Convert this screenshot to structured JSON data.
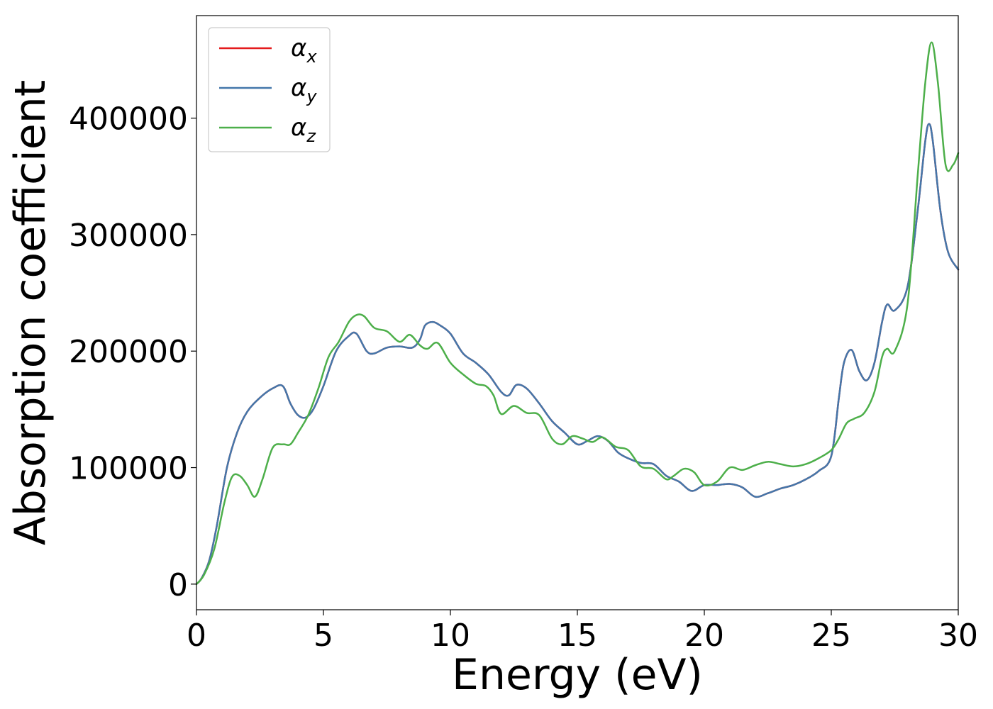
{
  "chart_data": {
    "type": "line",
    "xlabel": "Energy (eV)",
    "ylabel": "Absorption coefficient",
    "xlim": [
      0,
      30
    ],
    "ylim": [
      -22000,
      488000
    ],
    "xticks": [
      0,
      5,
      10,
      15,
      20,
      25,
      30
    ],
    "xtick_labels": [
      "0",
      "5",
      "10",
      "15",
      "20",
      "25",
      "30"
    ],
    "yticks": [
      0,
      100000,
      200000,
      300000,
      400000
    ],
    "ytick_labels": [
      "0",
      "100000",
      "200000",
      "300000",
      "400000"
    ],
    "grid": false,
    "legend_position": "top-left",
    "series": [
      {
        "name": "α",
        "subscript": "x",
        "color": "#e41a1c",
        "x": [
          0,
          0.2,
          0.5,
          0.8,
          1.2,
          1.6,
          2.0,
          2.5,
          3.0,
          3.4,
          3.7,
          4.0,
          4.3,
          4.6,
          5.0,
          5.5,
          6.0,
          6.3,
          6.7,
          7.0,
          7.5,
          8.0,
          8.5,
          8.8,
          9.0,
          9.3,
          9.6,
          10.0,
          10.5,
          11.0,
          11.5,
          12.0,
          12.3,
          12.6,
          13.0,
          13.5,
          14.0,
          14.5,
          15.0,
          15.4,
          15.8,
          16.2,
          16.6,
          17.0,
          17.5,
          18.0,
          18.5,
          19.0,
          19.5,
          20.0,
          20.5,
          21.0,
          21.5,
          22.0,
          22.5,
          23.0,
          23.5,
          24.0,
          24.5,
          25.0,
          25.3,
          25.5,
          25.8,
          26.1,
          26.4,
          26.7,
          27.0,
          27.2,
          27.5,
          28.0,
          28.4,
          28.7,
          28.85,
          29.0,
          29.3,
          29.6,
          30.0
        ],
        "y": [
          0,
          5000,
          20000,
          50000,
          100000,
          130000,
          148000,
          160000,
          168000,
          170000,
          155000,
          145000,
          143000,
          150000,
          170000,
          200000,
          213000,
          215000,
          200000,
          198000,
          203000,
          204000,
          203000,
          210000,
          222000,
          225000,
          222000,
          215000,
          198000,
          190000,
          180000,
          165000,
          162000,
          171000,
          168000,
          155000,
          140000,
          130000,
          120000,
          123000,
          127000,
          123000,
          113000,
          108000,
          104000,
          103000,
          93000,
          88000,
          80000,
          85000,
          85000,
          86000,
          83000,
          75000,
          78000,
          82000,
          85000,
          90000,
          97000,
          110000,
          160000,
          190000,
          201000,
          183000,
          175000,
          190000,
          225000,
          240000,
          235000,
          255000,
          320000,
          380000,
          395000,
          380000,
          320000,
          285000,
          270000
        ]
      },
      {
        "name": "α",
        "subscript": "y",
        "color": "#4477aa",
        "x": [
          0,
          0.2,
          0.5,
          0.8,
          1.2,
          1.6,
          2.0,
          2.5,
          3.0,
          3.4,
          3.7,
          4.0,
          4.3,
          4.6,
          5.0,
          5.5,
          6.0,
          6.3,
          6.7,
          7.0,
          7.5,
          8.0,
          8.5,
          8.8,
          9.0,
          9.3,
          9.6,
          10.0,
          10.5,
          11.0,
          11.5,
          12.0,
          12.3,
          12.6,
          13.0,
          13.5,
          14.0,
          14.5,
          15.0,
          15.4,
          15.8,
          16.2,
          16.6,
          17.0,
          17.5,
          18.0,
          18.5,
          19.0,
          19.5,
          20.0,
          20.5,
          21.0,
          21.5,
          22.0,
          22.5,
          23.0,
          23.5,
          24.0,
          24.5,
          25.0,
          25.3,
          25.5,
          25.8,
          26.1,
          26.4,
          26.7,
          27.0,
          27.2,
          27.5,
          28.0,
          28.4,
          28.7,
          28.85,
          29.0,
          29.3,
          29.6,
          30.0
        ],
        "y": [
          0,
          5000,
          20000,
          50000,
          100000,
          130000,
          148000,
          160000,
          168000,
          170000,
          155000,
          145000,
          143000,
          150000,
          170000,
          200000,
          213000,
          215000,
          200000,
          198000,
          203000,
          204000,
          203000,
          210000,
          222000,
          225000,
          222000,
          215000,
          198000,
          190000,
          180000,
          165000,
          162000,
          171000,
          168000,
          155000,
          140000,
          130000,
          120000,
          123000,
          127000,
          123000,
          113000,
          108000,
          104000,
          103000,
          93000,
          88000,
          80000,
          85000,
          85000,
          86000,
          83000,
          75000,
          78000,
          82000,
          85000,
          90000,
          97000,
          110000,
          160000,
          190000,
          201000,
          183000,
          175000,
          190000,
          225000,
          240000,
          235000,
          255000,
          320000,
          380000,
          395000,
          380000,
          320000,
          285000,
          270000
        ]
      },
      {
        "name": "α",
        "subscript": "z",
        "color": "#4daf4a",
        "x": [
          0,
          0.3,
          0.7,
          1.1,
          1.4,
          1.7,
          2.0,
          2.3,
          2.6,
          3.0,
          3.4,
          3.7,
          4.0,
          4.4,
          4.8,
          5.2,
          5.6,
          6.0,
          6.3,
          6.6,
          7.0,
          7.5,
          8.0,
          8.4,
          8.8,
          9.1,
          9.5,
          10.0,
          10.5,
          11.0,
          11.4,
          11.7,
          12.0,
          12.5,
          13.0,
          13.5,
          14.0,
          14.4,
          14.8,
          15.2,
          15.6,
          16.0,
          16.5,
          17.0,
          17.5,
          18.0,
          18.5,
          18.8,
          19.2,
          19.6,
          20.0,
          20.5,
          21.0,
          21.5,
          22.0,
          22.5,
          23.0,
          23.5,
          24.0,
          24.5,
          25.0,
          25.3,
          25.6,
          25.9,
          26.3,
          26.7,
          27.0,
          27.2,
          27.5,
          28.0,
          28.4,
          28.7,
          28.95,
          29.2,
          29.5,
          29.8,
          30.0
        ],
        "y": [
          0,
          8000,
          30000,
          70000,
          92000,
          93000,
          85000,
          75000,
          90000,
          117000,
          120000,
          120000,
          130000,
          145000,
          168000,
          195000,
          208000,
          225000,
          231000,
          230000,
          220000,
          217000,
          208000,
          214000,
          205000,
          202000,
          207000,
          190000,
          180000,
          172000,
          170000,
          162000,
          146000,
          153000,
          147000,
          145000,
          125000,
          120000,
          127000,
          125000,
          122000,
          126000,
          118000,
          115000,
          101000,
          99000,
          90000,
          93000,
          99000,
          96000,
          85000,
          88000,
          100000,
          98000,
          102000,
          105000,
          103000,
          101000,
          103000,
          108000,
          115000,
          125000,
          138000,
          142000,
          147000,
          165000,
          195000,
          202000,
          200000,
          240000,
          350000,
          430000,
          465000,
          430000,
          360000,
          360000,
          370000
        ]
      }
    ]
  }
}
